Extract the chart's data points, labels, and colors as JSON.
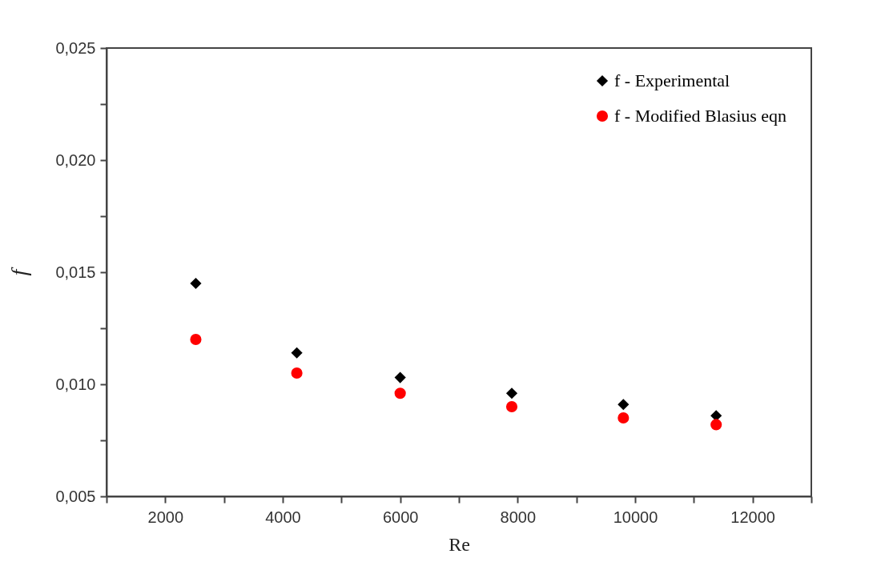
{
  "chart_data": {
    "type": "scatter",
    "xlabel": "Re",
    "ylabel": "f",
    "legend": "top right",
    "grid": false,
    "xlim": [
      1000,
      13000
    ],
    "xticks": [
      {
        "value": 1000,
        "label": null
      },
      2000,
      {
        "value": 3000,
        "label": null
      },
      4000,
      {
        "value": 5000,
        "label": null
      },
      6000,
      {
        "value": 7000,
        "label": null
      },
      8000,
      {
        "value": 9000,
        "label": null
      },
      10000,
      {
        "value": 11000,
        "label": null
      },
      12000,
      {
        "value": 13000,
        "label": null
      }
    ],
    "ylim": [
      0.005,
      0.025
    ],
    "yticks": [
      {
        "value": 0.005,
        "label": "0,005"
      },
      {
        "value": 0.0075,
        "label": null
      },
      {
        "value": 0.01,
        "label": "0,010"
      },
      {
        "value": 0.0125,
        "label": null
      },
      {
        "value": 0.015,
        "label": "0,015"
      },
      {
        "value": 0.0175,
        "label": null
      },
      {
        "value": 0.02,
        "label": "0,020"
      },
      {
        "value": 0.0225,
        "label": null
      },
      {
        "value": 0.025,
        "label": "0,025"
      }
    ],
    "x": [
      2520,
      4240,
      6000,
      7900,
      9800,
      11380
    ],
    "series": [
      {
        "name": "f - Experimental",
        "color": "#000000",
        "marker": "diamond",
        "values": [
          0.0145,
          0.0114,
          0.0103,
          0.0096,
          0.0091,
          0.0086
        ]
      },
      {
        "name": "f - Modified Blasius eqn",
        "color": "#ff0000",
        "marker": "circle",
        "values": [
          0.012,
          0.0105,
          0.0096,
          0.009,
          0.0085,
          0.0082
        ]
      }
    ]
  }
}
